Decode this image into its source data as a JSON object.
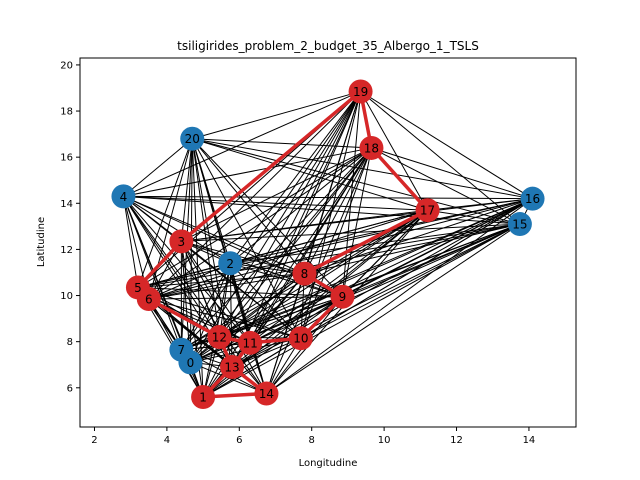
{
  "chart_data": {
    "type": "scatter",
    "title": "tsiligirides_problem_2_budget_35_Albergo_1_TSLS",
    "xlabel": "Longitudine",
    "ylabel": "Latitudine",
    "xlim": [
      1.6,
      15.3
    ],
    "ylim": [
      4.3,
      20.3
    ],
    "xticks": [
      2,
      4,
      6,
      8,
      10,
      12,
      14
    ],
    "yticks": [
      6,
      8,
      10,
      12,
      14,
      16,
      18,
      20
    ],
    "grid": false,
    "colors": {
      "visited": "#d62728",
      "unvisited": "#1f77b4",
      "edge": "#000000",
      "route": "#d62728"
    },
    "nodes": [
      {
        "id": "0",
        "x": 4.65,
        "y": 7.1,
        "visited": false
      },
      {
        "id": "1",
        "x": 5.0,
        "y": 5.6,
        "visited": true
      },
      {
        "id": "2",
        "x": 5.75,
        "y": 11.4,
        "visited": false
      },
      {
        "id": "3",
        "x": 4.4,
        "y": 12.35,
        "visited": true
      },
      {
        "id": "4",
        "x": 2.8,
        "y": 14.3,
        "visited": false
      },
      {
        "id": "5",
        "x": 3.2,
        "y": 10.35,
        "visited": true
      },
      {
        "id": "6",
        "x": 3.5,
        "y": 9.85,
        "visited": true
      },
      {
        "id": "7",
        "x": 4.4,
        "y": 7.65,
        "visited": false
      },
      {
        "id": "8",
        "x": 7.8,
        "y": 10.95,
        "visited": true
      },
      {
        "id": "9",
        "x": 8.85,
        "y": 9.95,
        "visited": true
      },
      {
        "id": "10",
        "x": 7.7,
        "y": 8.15,
        "visited": true
      },
      {
        "id": "11",
        "x": 6.3,
        "y": 7.95,
        "visited": true
      },
      {
        "id": "12",
        "x": 5.45,
        "y": 8.2,
        "visited": true
      },
      {
        "id": "13",
        "x": 5.8,
        "y": 6.9,
        "visited": true
      },
      {
        "id": "14",
        "x": 6.75,
        "y": 5.75,
        "visited": true
      },
      {
        "id": "15",
        "x": 13.75,
        "y": 13.1,
        "visited": false
      },
      {
        "id": "16",
        "x": 14.1,
        "y": 14.2,
        "visited": false
      },
      {
        "id": "17",
        "x": 11.2,
        "y": 13.7,
        "visited": true
      },
      {
        "id": "18",
        "x": 9.65,
        "y": 16.4,
        "visited": true
      },
      {
        "id": "19",
        "x": 9.35,
        "y": 18.85,
        "visited": true
      },
      {
        "id": "20",
        "x": 4.7,
        "y": 16.8,
        "visited": false
      }
    ],
    "route": [
      "1",
      "14",
      "13",
      "12",
      "11",
      "10",
      "9",
      "8",
      "17",
      "18",
      "19",
      "3",
      "5",
      "6",
      "12",
      "11",
      "13",
      "1"
    ]
  }
}
